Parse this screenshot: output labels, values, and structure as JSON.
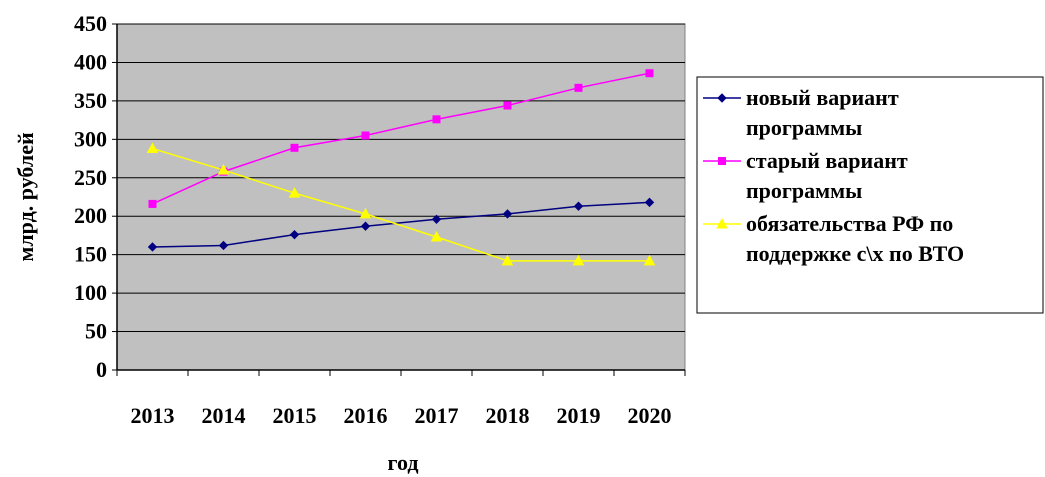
{
  "chart_data": {
    "type": "line",
    "categories": [
      "2013",
      "2014",
      "2015",
      "2016",
      "2017",
      "2018",
      "2019",
      "2020"
    ],
    "series": [
      {
        "name_lines": [
          "новый вариант",
          "программы"
        ],
        "color": "#000080",
        "marker": "diamond",
        "values": [
          160,
          162,
          176,
          187,
          196,
          203,
          213,
          218
        ]
      },
      {
        "name_lines": [
          "старый вариант",
          "программы"
        ],
        "color": "#ff00ff",
        "marker": "square",
        "values": [
          216,
          258,
          289,
          305,
          326,
          344,
          367,
          386
        ]
      },
      {
        "name_lines": [
          "обязательства РФ по",
          "поддержке с\\х по ВТО"
        ],
        "color": "#ffff00",
        "marker": "triangle",
        "values": [
          288,
          260,
          230,
          203,
          173,
          142,
          142,
          142
        ]
      }
    ],
    "xlabel": "год",
    "ylabel": "млрд. рублей",
    "ylim": [
      0,
      450
    ],
    "yticks": [
      0,
      50,
      100,
      150,
      200,
      250,
      300,
      350,
      400,
      450
    ],
    "grid": true,
    "plot_background": "#c0c0c0",
    "legend_position": "right"
  }
}
